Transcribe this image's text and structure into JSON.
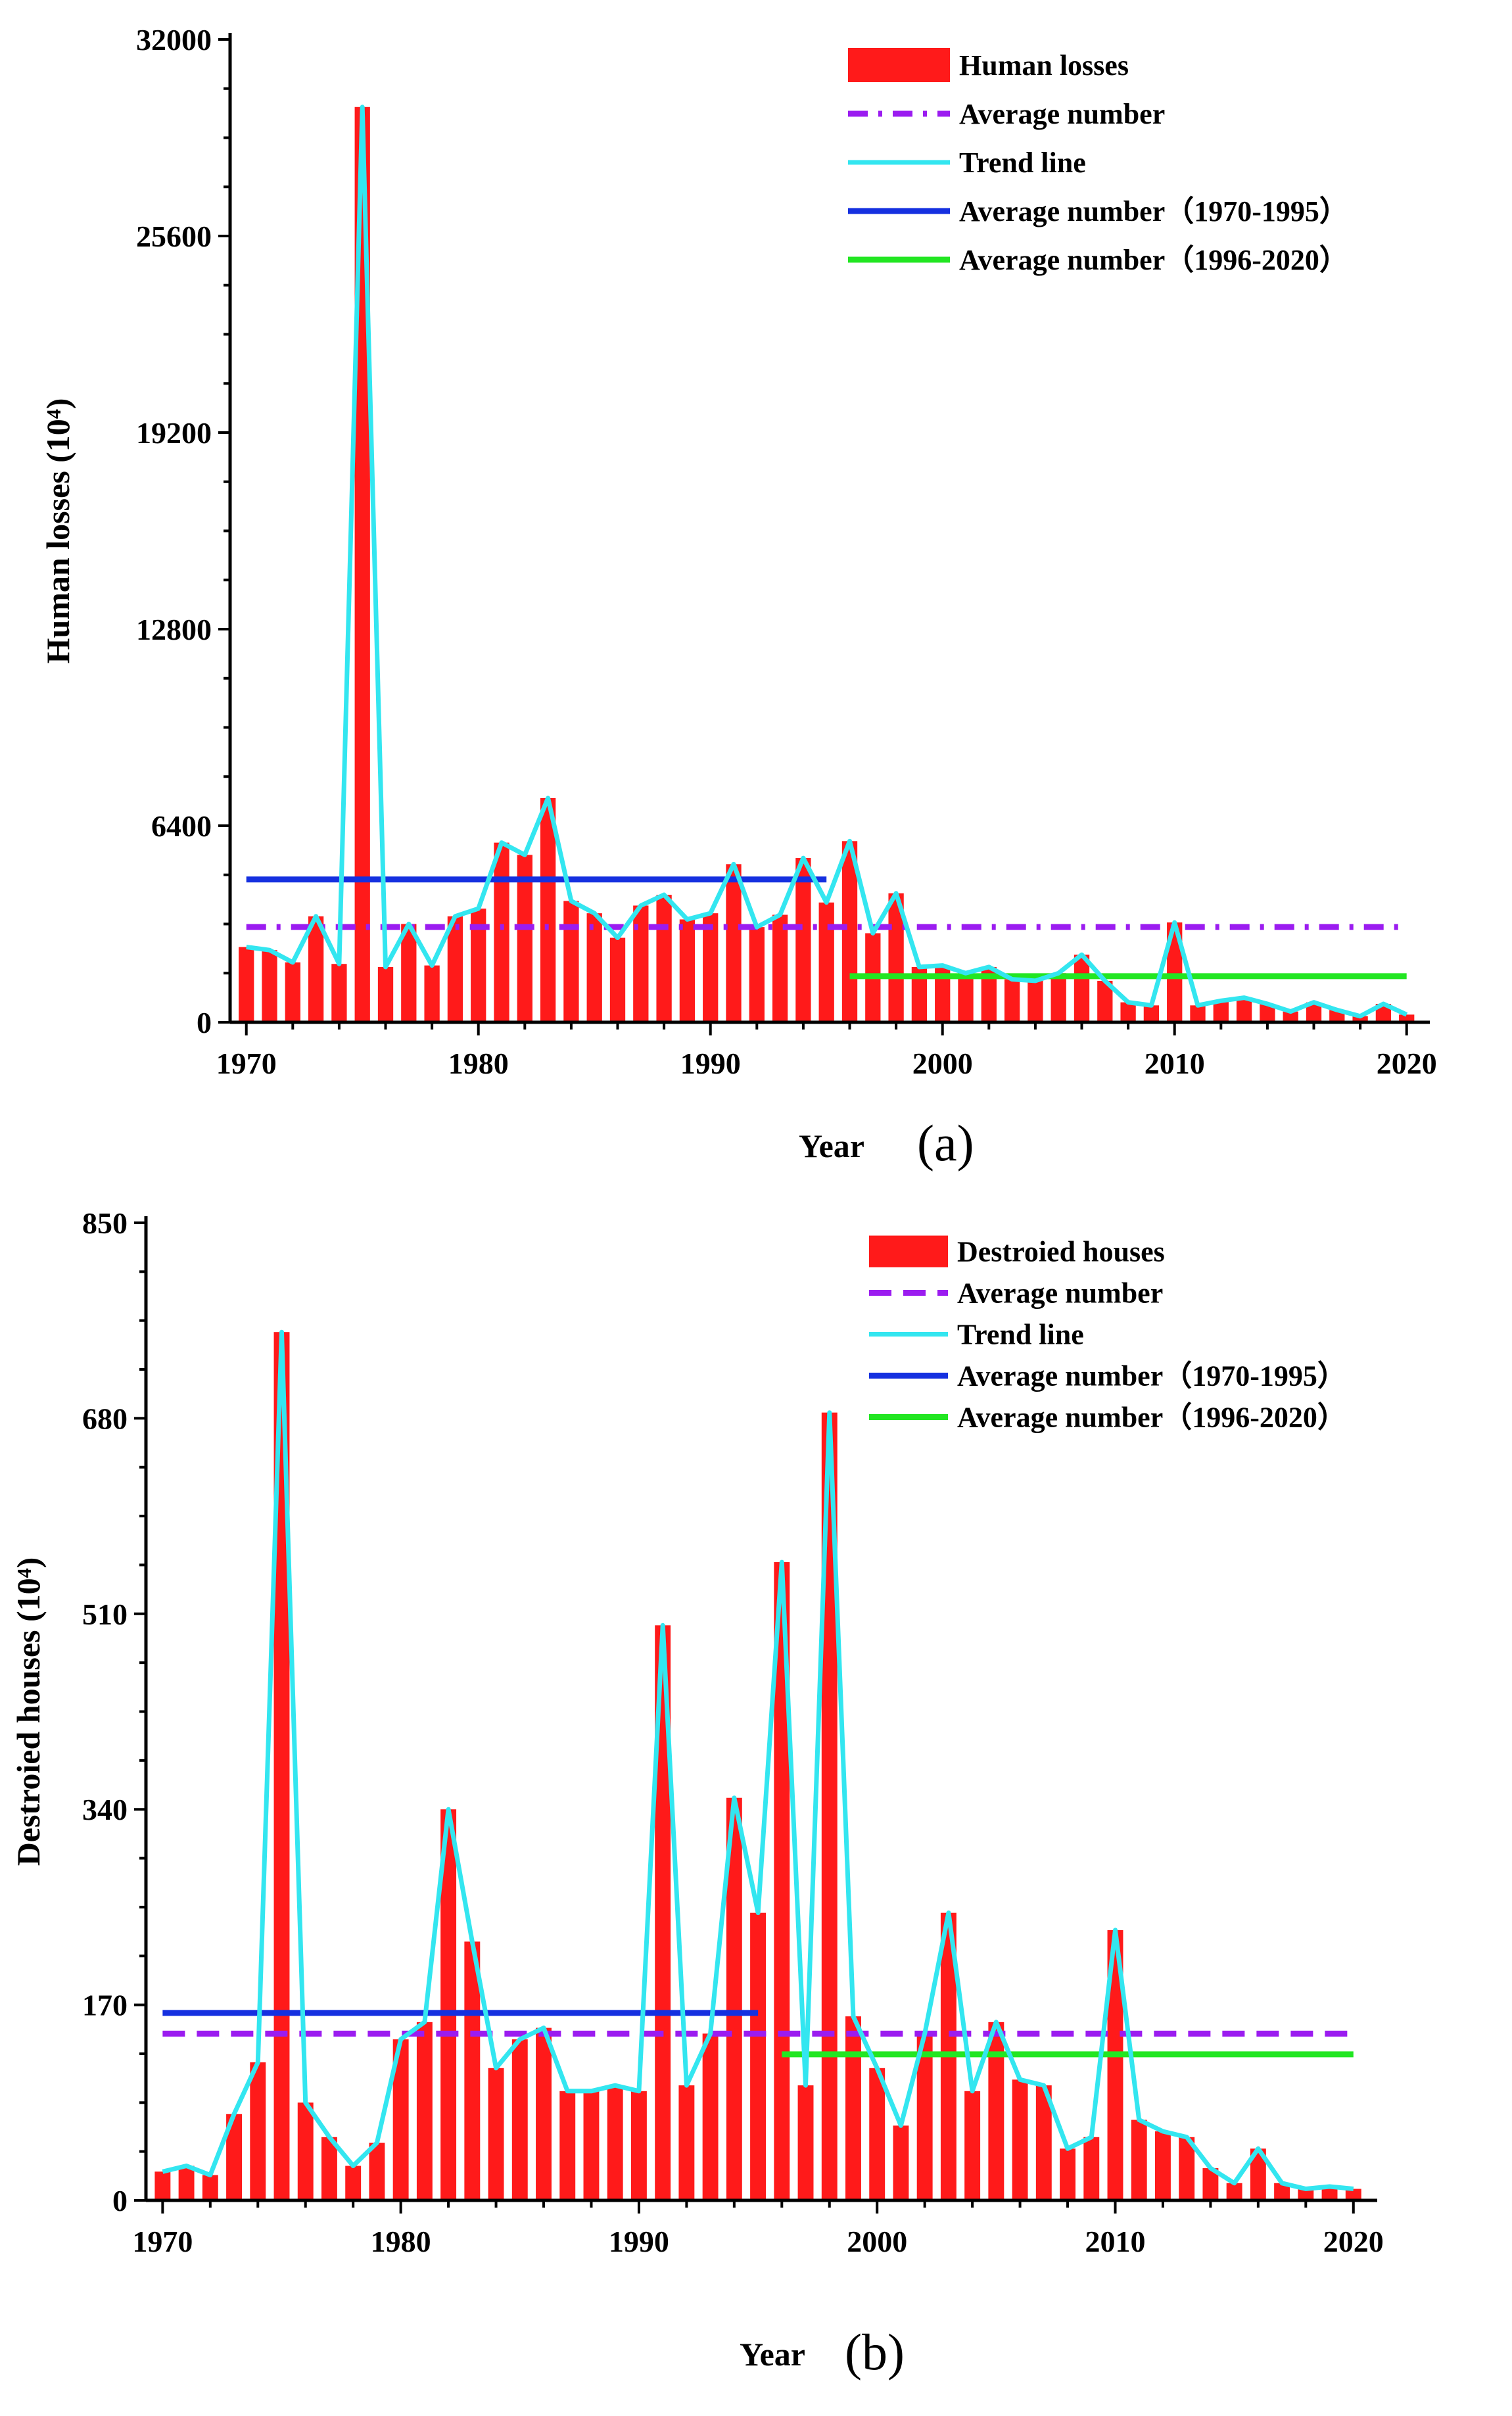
{
  "colors": {
    "bar": "#ff1a1a",
    "average": "#9b1cf0",
    "trend": "#33e6f0",
    "avg_1970_1995": "#1530e0",
    "avg_1996_2020": "#22e622"
  },
  "chart_data": [
    {
      "type": "bar",
      "panel_label": "(a)",
      "title": "",
      "xlabel": "Year",
      "ylabel": "Human losses  (10⁴)",
      "x": [
        1970,
        1971,
        1972,
        1973,
        1974,
        1975,
        1976,
        1977,
        1978,
        1979,
        1980,
        1981,
        1982,
        1983,
        1984,
        1985,
        1986,
        1987,
        1988,
        1989,
        1990,
        1991,
        1992,
        1993,
        1994,
        1995,
        1996,
        1997,
        1998,
        1999,
        2000,
        2001,
        2002,
        2003,
        2004,
        2005,
        2006,
        2007,
        2008,
        2009,
        2010,
        2011,
        2012,
        2013,
        2014,
        2015,
        2016,
        2017,
        2018,
        2019,
        2020
      ],
      "values": [
        2450,
        2350,
        1950,
        3450,
        1900,
        29800,
        1800,
        3200,
        1850,
        3450,
        3700,
        5850,
        5450,
        7300,
        3950,
        3550,
        2750,
        3800,
        4150,
        3350,
        3550,
        5150,
        3100,
        3500,
        5350,
        3900,
        5900,
        2900,
        4200,
        1800,
        1850,
        1600,
        1800,
        1400,
        1350,
        1600,
        2200,
        1350,
        650,
        550,
        3250,
        550,
        700,
        800,
        600,
        350,
        650,
        400,
        200,
        600,
        250
      ],
      "xticks": [
        "1970",
        "1980",
        "1990",
        "2000",
        "2010",
        "2020"
      ],
      "yticks": [
        "0",
        "6400",
        "12800",
        "19200",
        "25600",
        "32000"
      ],
      "xlim": [
        1969.3,
        2021
      ],
      "ylim": [
        0,
        32000
      ],
      "lines": [
        {
          "name": "Average number",
          "style": "dash-dot",
          "x": [
            1970,
            2020
          ],
          "y": [
            3100,
            3100
          ]
        },
        {
          "name": "Average number（1970-1995）",
          "style": "solid",
          "x": [
            1970,
            1995
          ],
          "y": [
            4650,
            4650
          ]
        },
        {
          "name": "Average number（1996-2020）",
          "style": "solid",
          "x": [
            1996,
            2020
          ],
          "y": [
            1500,
            1500
          ]
        }
      ],
      "legend": [
        {
          "label": "Human losses",
          "kind": "bar"
        },
        {
          "label": "Average number",
          "kind": "average"
        },
        {
          "label": "Trend line",
          "kind": "trend"
        },
        {
          "label": "Average number（1970-1995）",
          "kind": "avg_1970_1995"
        },
        {
          "label": "Average number（1996-2020）",
          "kind": "avg_1996_2020"
        }
      ],
      "legend_placement": "top-right"
    },
    {
      "type": "bar",
      "panel_label": "(b)",
      "title": "",
      "xlabel": "Year",
      "ylabel": "Destroied houses (10⁴)",
      "x": [
        1970,
        1971,
        1972,
        1973,
        1974,
        1975,
        1976,
        1977,
        1978,
        1979,
        1980,
        1981,
        1982,
        1983,
        1984,
        1985,
        1986,
        1987,
        1988,
        1989,
        1990,
        1991,
        1992,
        1993,
        1994,
        1995,
        1996,
        1997,
        1998,
        1999,
        2000,
        2001,
        2002,
        2003,
        2004,
        2005,
        2006,
        2007,
        2008,
        2009,
        2010,
        2011,
        2012,
        2013,
        2014,
        2015,
        2016,
        2017,
        2018,
        2019,
        2020
      ],
      "values": [
        25,
        30,
        22,
        75,
        120,
        755,
        85,
        55,
        30,
        50,
        140,
        155,
        340,
        225,
        115,
        140,
        150,
        95,
        95,
        100,
        95,
        500,
        100,
        145,
        350,
        250,
        555,
        100,
        685,
        160,
        115,
        65,
        145,
        250,
        95,
        155,
        105,
        100,
        45,
        55,
        235,
        70,
        60,
        55,
        28,
        15,
        45,
        15,
        10,
        12,
        10
      ],
      "xticks": [
        "1970",
        "1980",
        "1990",
        "2000",
        "2010",
        "2020"
      ],
      "yticks": [
        "0",
        "170",
        "340",
        "510",
        "680",
        "850"
      ],
      "xlim": [
        1969.3,
        2021
      ],
      "ylim": [
        0,
        850
      ],
      "lines": [
        {
          "name": "Average number",
          "style": "dash",
          "x": [
            1970,
            2020
          ],
          "y": [
            145,
            145
          ]
        },
        {
          "name": "Average number（1970-1995）",
          "style": "solid",
          "x": [
            1970,
            1995
          ],
          "y": [
            163,
            163
          ]
        },
        {
          "name": "Average number（1996-2020）",
          "style": "solid",
          "x": [
            1996,
            2020
          ],
          "y": [
            127,
            127
          ]
        }
      ],
      "legend": [
        {
          "label": "Destroied houses",
          "kind": "bar"
        },
        {
          "label": "Average number",
          "kind": "average"
        },
        {
          "label": "Trend line",
          "kind": "trend"
        },
        {
          "label": "Average number（1970-1995）",
          "kind": "avg_1970_1995"
        },
        {
          "label": "Average number（1996-2020）",
          "kind": "avg_1996_2020"
        }
      ],
      "legend_placement": "top-right"
    }
  ]
}
